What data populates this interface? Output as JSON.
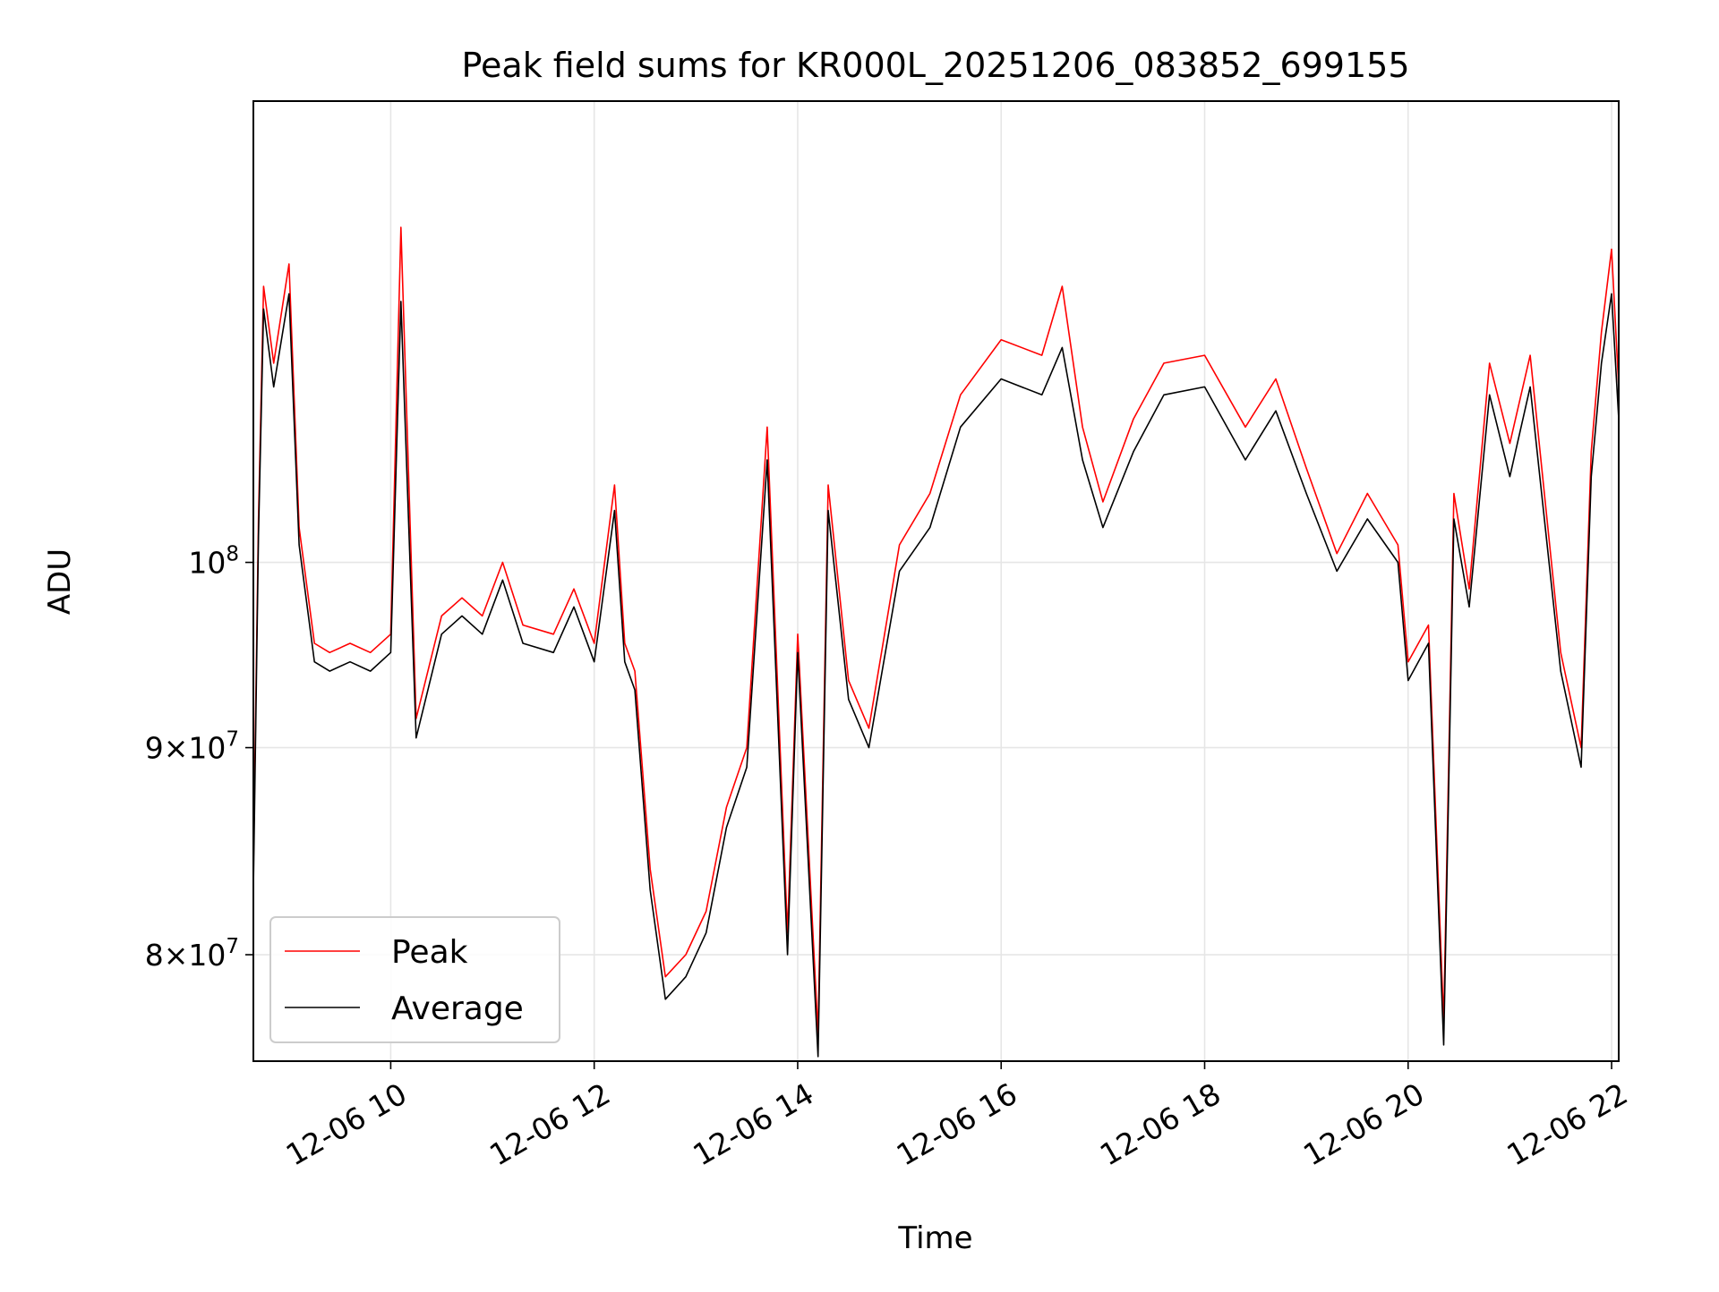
{
  "chart_data": {
    "type": "line",
    "title": "Peak field sums for KR000L_20251206_083852_699155",
    "xlabel": "Time",
    "ylabel": "ADU",
    "yscale": "log",
    "ylim": [
      75300000,
      130000000
    ],
    "xlim_hours": [
      8.65,
      22.07
    ],
    "grid": true,
    "legend_position": "lower-left",
    "x_ticks": [
      {
        "hour": 10,
        "label": "12-06 10"
      },
      {
        "hour": 12,
        "label": "12-06 12"
      },
      {
        "hour": 14,
        "label": "12-06 14"
      },
      {
        "hour": 16,
        "label": "12-06 16"
      },
      {
        "hour": 18,
        "label": "12-06 18"
      },
      {
        "hour": 20,
        "label": "12-06 20"
      },
      {
        "hour": 22,
        "label": "12-06 22"
      }
    ],
    "y_ticks": [
      {
        "value": 80000000,
        "mantissa": "8",
        "exp": "7"
      },
      {
        "value": 90000000,
        "mantissa": "9",
        "exp": "7"
      },
      {
        "value": 100000000,
        "mantissa": "",
        "exp": "8"
      }
    ],
    "series": [
      {
        "name": "Peak",
        "color": "#ff0000",
        "hours": [
          8.65,
          8.7,
          8.75,
          8.85,
          9.0,
          9.1,
          9.25,
          9.4,
          9.6,
          9.8,
          10.0,
          10.1,
          10.25,
          10.5,
          10.7,
          10.9,
          11.1,
          11.3,
          11.6,
          11.8,
          12.0,
          12.2,
          12.3,
          12.4,
          12.55,
          12.7,
          12.9,
          13.1,
          13.3,
          13.5,
          13.7,
          13.9,
          14.0,
          14.2,
          14.3,
          14.5,
          14.7,
          15.0,
          15.3,
          15.6,
          16.0,
          16.4,
          16.6,
          16.8,
          17.0,
          17.3,
          17.6,
          18.0,
          18.4,
          18.7,
          19.0,
          19.3,
          19.6,
          19.9,
          20.0,
          20.2,
          20.35,
          20.45,
          20.6,
          20.8,
          21.0,
          21.2,
          21.5,
          21.7,
          21.8,
          21.9,
          22.0,
          22.07
        ],
        "values": [
          84000000,
          102500000,
          117000000,
          112000000,
          118500000,
          102000000,
          95500000,
          95000000,
          95500000,
          95000000,
          96000000,
          121000000,
          91500000,
          97000000,
          98000000,
          97000000,
          100000000,
          96500000,
          96000000,
          98500000,
          95500000,
          104500000,
          95500000,
          94000000,
          84000000,
          79000000,
          80000000,
          82000000,
          87000000,
          90000000,
          108000000,
          81000000,
          96000000,
          76500000,
          104500000,
          93500000,
          91000000,
          101000000,
          104000000,
          110000000,
          113500000,
          112500000,
          117000000,
          108000000,
          103500000,
          108500000,
          112000000,
          112500000,
          108000000,
          111000000,
          105500000,
          100500000,
          104000000,
          101000000,
          94500000,
          96500000,
          77000000,
          104000000,
          98500000,
          112000000,
          107000000,
          112500000,
          95000000,
          90000000,
          106500000,
          114000000,
          119500000,
          110500000
        ]
      },
      {
        "name": "Average",
        "color": "#000000",
        "hours": [
          8.65,
          8.7,
          8.75,
          8.85,
          9.0,
          9.1,
          9.25,
          9.4,
          9.6,
          9.8,
          10.0,
          10.1,
          10.25,
          10.5,
          10.7,
          10.9,
          11.1,
          11.3,
          11.6,
          11.8,
          12.0,
          12.2,
          12.3,
          12.4,
          12.55,
          12.7,
          12.9,
          13.1,
          13.3,
          13.5,
          13.7,
          13.9,
          14.0,
          14.2,
          14.3,
          14.5,
          14.7,
          15.0,
          15.3,
          15.6,
          16.0,
          16.4,
          16.6,
          16.8,
          17.0,
          17.3,
          17.6,
          18.0,
          18.4,
          18.7,
          19.0,
          19.3,
          19.6,
          19.9,
          20.0,
          20.2,
          20.35,
          20.45,
          20.6,
          20.8,
          21.0,
          21.2,
          21.5,
          21.7,
          21.8,
          21.9,
          22.0,
          22.07
        ],
        "values": [
          83000000,
          101500000,
          115500000,
          110500000,
          116500000,
          101000000,
          94500000,
          94000000,
          94500000,
          94000000,
          95000000,
          116000000,
          90500000,
          96000000,
          97000000,
          96000000,
          99000000,
          95500000,
          95000000,
          97500000,
          94500000,
          103000000,
          94500000,
          93000000,
          83000000,
          78000000,
          79000000,
          81000000,
          86000000,
          89000000,
          106000000,
          80000000,
          95000000,
          75500000,
          103000000,
          92500000,
          90000000,
          99500000,
          102000000,
          108000000,
          111000000,
          110000000,
          113000000,
          106000000,
          102000000,
          106500000,
          110000000,
          110500000,
          106000000,
          109000000,
          104000000,
          99500000,
          102500000,
          100000000,
          93500000,
          95500000,
          76000000,
          102500000,
          97500000,
          110000000,
          105000000,
          110500000,
          94000000,
          89000000,
          105000000,
          112000000,
          116500000,
          108500000
        ]
      }
    ]
  }
}
